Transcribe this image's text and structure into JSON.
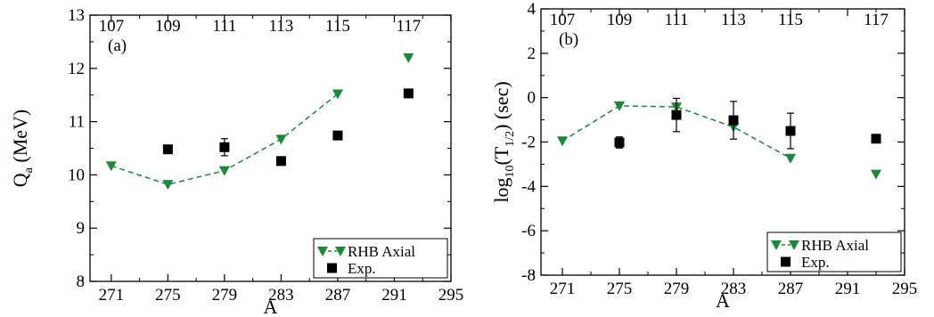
{
  "colors": {
    "model": "#1a8a3a",
    "exp": "#000000",
    "axis": "#000000"
  },
  "chart_data": [
    {
      "type": "scatter",
      "panel_label": "(a)",
      "xlabel": "A",
      "ylabel_main": "Q",
      "ylabel_sub": "a",
      "ylabel_rest": " (MeV)",
      "xlim": [
        269.5,
        295
      ],
      "ylim": [
        8,
        13
      ],
      "xticks": [
        271,
        275,
        279,
        283,
        287,
        291,
        295
      ],
      "yticks": [
        8,
        9,
        10,
        11,
        12,
        13
      ],
      "top_labels": [
        {
          "x": 271,
          "text": "107"
        },
        {
          "x": 275,
          "text": "109"
        },
        {
          "x": 279,
          "text": "111"
        },
        {
          "x": 283,
          "text": "113"
        },
        {
          "x": 287,
          "text": "115"
        },
        {
          "x": 292,
          "text": "117"
        }
      ],
      "series": [
        {
          "name": "RHB Axial",
          "marker": "triangle-down",
          "line": "dashed",
          "line_points": 5,
          "x": [
            271,
            275,
            279,
            283,
            287,
            292
          ],
          "y": [
            10.17,
            9.82,
            10.08,
            10.67,
            11.52,
            12.2
          ]
        },
        {
          "name": "Exp.",
          "marker": "square",
          "x": [
            275,
            279,
            283,
            287,
            292
          ],
          "y": [
            10.48,
            10.52,
            10.26,
            10.74,
            11.53
          ],
          "err": [
            0.06,
            0.16,
            0.06,
            0.05,
            0.04
          ]
        }
      ],
      "legend": "bottom-right"
    },
    {
      "type": "scatter",
      "panel_label": "(b)",
      "xlabel": "A",
      "ylabel_main": "log",
      "ylabel_sub": "10",
      "ylabel_rest": "(T",
      "ylabel_sub2": "1/2",
      "ylabel_rest2": ") (sec)",
      "xlim": [
        269.5,
        295
      ],
      "ylim": [
        -8,
        4
      ],
      "xticks": [
        271,
        275,
        279,
        283,
        287,
        291,
        295
      ],
      "yticks": [
        -8,
        -6,
        -4,
        -2,
        0,
        2,
        4
      ],
      "top_labels": [
        {
          "x": 271,
          "text": "107"
        },
        {
          "x": 275,
          "text": "109"
        },
        {
          "x": 279,
          "text": "111"
        },
        {
          "x": 283,
          "text": "113"
        },
        {
          "x": 287,
          "text": "115"
        },
        {
          "x": 293,
          "text": "117"
        }
      ],
      "series": [
        {
          "name": "RHB Axial",
          "marker": "triangle-down",
          "line": "dashed",
          "line_points": 5,
          "x": [
            271,
            275,
            279,
            283,
            287,
            293
          ],
          "y": [
            -1.95,
            -0.37,
            -0.42,
            -1.32,
            -2.73,
            -3.45
          ]
        },
        {
          "name": "Exp.",
          "marker": "square",
          "x": [
            275,
            279,
            283,
            287,
            293
          ],
          "y": [
            -2.02,
            -0.78,
            -1.02,
            -1.5,
            -1.85
          ],
          "err": [
            0.25,
            0.75,
            0.85,
            0.8,
            0.08
          ]
        }
      ],
      "legend": "bottom-right"
    }
  ]
}
